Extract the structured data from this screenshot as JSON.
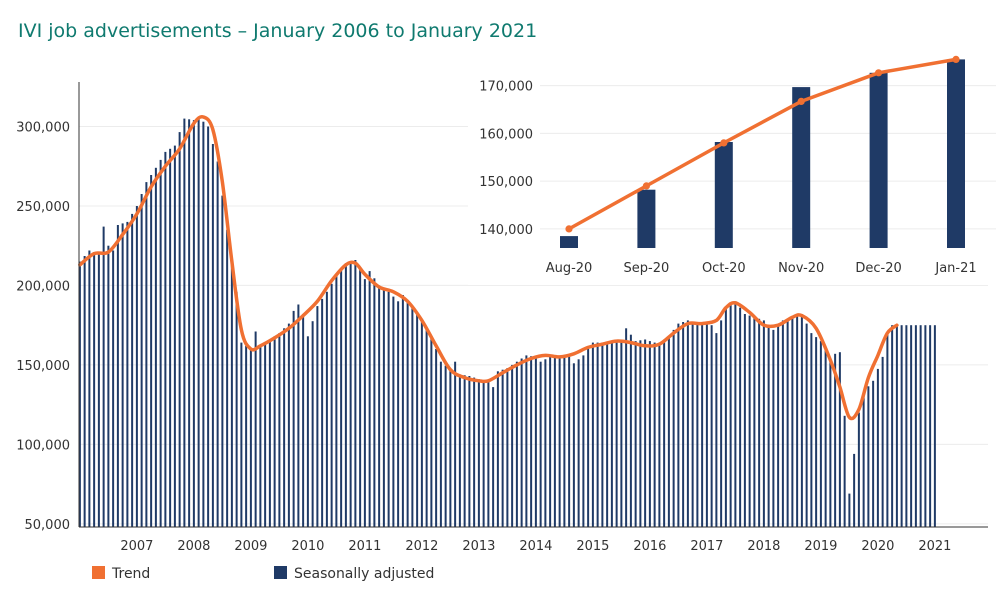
{
  "title": "IVI job advertisements – January 2006 to January 2021",
  "colors": {
    "trend": "#f07032",
    "bars": "#1f3a66",
    "title": "#0f7a6f"
  },
  "legend": {
    "trend": "Trend",
    "bars": "Seasonally adjusted"
  },
  "chart_data": [
    {
      "type": "bar",
      "title": "IVI job advertisements – January 2006 to January 2021",
      "xlabel": "",
      "ylabel": "",
      "ylim": [
        48000,
        328000
      ],
      "yticks": [
        50000,
        100000,
        150000,
        200000,
        250000,
        300000
      ],
      "ytick_labels": [
        "50,000",
        "100,000",
        "150,000",
        "200,000",
        "250,000",
        "300,000"
      ],
      "xticks": [
        "2007",
        "2008",
        "2009",
        "2010",
        "2011",
        "2012",
        "2013",
        "2014",
        "2015",
        "2016",
        "2017",
        "2018",
        "2019",
        "2020",
        "2021"
      ],
      "start": "2006-01",
      "series": [
        {
          "name": "Seasonally adjusted",
          "kind": "bar",
          "anchors": [
            [
              0,
              215000
            ],
            [
              2,
              222000
            ],
            [
              4,
              220000
            ],
            [
              5,
              237000
            ],
            [
              6,
              225000
            ],
            [
              7,
              222000
            ],
            [
              8,
              238000
            ],
            [
              10,
              240000
            ],
            [
              12,
              250000
            ],
            [
              14,
              265000
            ],
            [
              16,
              274000
            ],
            [
              18,
              284000
            ],
            [
              20,
              288000
            ],
            [
              22,
              305000
            ],
            [
              24,
              304000
            ],
            [
              25,
              306000
            ],
            [
              27,
              300000
            ],
            [
              29,
              278000
            ],
            [
              31,
              235000
            ],
            [
              33,
              196000
            ],
            [
              34,
              164000
            ],
            [
              35,
              162000
            ],
            [
              36,
              160000
            ],
            [
              37,
              171000
            ],
            [
              38,
              162000
            ],
            [
              40,
              166000
            ],
            [
              42,
              170000
            ],
            [
              44,
              176000
            ],
            [
              45,
              184000
            ],
            [
              46,
              188000
            ],
            [
              47,
              182000
            ],
            [
              48,
              168000
            ],
            [
              50,
              187000
            ],
            [
              52,
              196000
            ],
            [
              54,
              206000
            ],
            [
              56,
              214000
            ],
            [
              58,
              216000
            ],
            [
              60,
              204000
            ],
            [
              61,
              209000
            ],
            [
              63,
              200000
            ],
            [
              65,
              196000
            ],
            [
              67,
              190000
            ],
            [
              68,
              194000
            ],
            [
              70,
              187000
            ],
            [
              72,
              177000
            ],
            [
              74,
              168000
            ],
            [
              76,
              152000
            ],
            [
              78,
              147000
            ],
            [
              79,
              152000
            ],
            [
              80,
              144000
            ],
            [
              82,
              143000
            ],
            [
              84,
              141000
            ],
            [
              86,
              140000
            ],
            [
              87,
              136000
            ],
            [
              88,
              146000
            ],
            [
              90,
              148000
            ],
            [
              92,
              152000
            ],
            [
              94,
              156000
            ],
            [
              96,
              155000
            ],
            [
              97,
              152000
            ],
            [
              99,
              155000
            ],
            [
              101,
              155000
            ],
            [
              103,
              156000
            ],
            [
              104,
              151000
            ],
            [
              106,
              156000
            ],
            [
              108,
              164000
            ],
            [
              110,
              164000
            ],
            [
              112,
              164000
            ],
            [
              114,
              165000
            ],
            [
              115,
              173000
            ],
            [
              117,
              165000
            ],
            [
              119,
              166000
            ],
            [
              121,
              164000
            ],
            [
              122,
              164000
            ],
            [
              124,
              168000
            ],
            [
              126,
              176000
            ],
            [
              128,
              178000
            ],
            [
              130,
              176000
            ],
            [
              131,
              177000
            ],
            [
              133,
              175000
            ],
            [
              134,
              170000
            ],
            [
              136,
              186000
            ],
            [
              138,
              190000
            ],
            [
              140,
              182000
            ],
            [
              142,
              180000
            ],
            [
              144,
              178000
            ],
            [
              146,
              172000
            ],
            [
              148,
              178000
            ],
            [
              150,
              180000
            ],
            [
              152,
              182000
            ],
            [
              154,
              170000
            ],
            [
              156,
              165000
            ],
            [
              158,
              154000
            ],
            [
              159,
              157000
            ],
            [
              160,
              158000
            ],
            [
              161,
              118000
            ],
            [
              162,
              69000
            ],
            [
              163,
              94000
            ],
            [
              164,
              120000
            ],
            [
              165,
              133000
            ],
            [
              167,
              140000
            ],
            [
              169,
              155000
            ],
            [
              170,
              169000
            ],
            [
              171,
              175000
            ]
          ]
        },
        {
          "name": "Trend",
          "kind": "line",
          "anchors": [
            [
              0,
              213000
            ],
            [
              3,
              220000
            ],
            [
              6,
              221000
            ],
            [
              9,
              232000
            ],
            [
              12,
              245000
            ],
            [
              15,
              262000
            ],
            [
              18,
              275000
            ],
            [
              21,
              286000
            ],
            [
              24,
              302000
            ],
            [
              26,
              306000
            ],
            [
              28,
              298000
            ],
            [
              30,
              265000
            ],
            [
              32,
              215000
            ],
            [
              34,
              172000
            ],
            [
              36,
              160000
            ],
            [
              38,
              162000
            ],
            [
              41,
              167000
            ],
            [
              44,
              173000
            ],
            [
              47,
              181000
            ],
            [
              50,
              190000
            ],
            [
              53,
              203000
            ],
            [
              56,
              213000
            ],
            [
              58,
              214000
            ],
            [
              60,
              207000
            ],
            [
              63,
              199000
            ],
            [
              66,
              196000
            ],
            [
              69,
              190000
            ],
            [
              72,
              178000
            ],
            [
              75,
              162000
            ],
            [
              78,
              147000
            ],
            [
              81,
              142000
            ],
            [
              84,
              140000
            ],
            [
              86,
              140000
            ],
            [
              89,
              145000
            ],
            [
              92,
              150000
            ],
            [
              95,
              154000
            ],
            [
              98,
              156000
            ],
            [
              101,
              155000
            ],
            [
              104,
              157000
            ],
            [
              107,
              161000
            ],
            [
              110,
              163000
            ],
            [
              113,
              165000
            ],
            [
              116,
              164000
            ],
            [
              119,
              162000
            ],
            [
              122,
              163000
            ],
            [
              125,
              170000
            ],
            [
              128,
              176000
            ],
            [
              131,
              176000
            ],
            [
              134,
              178000
            ],
            [
              136,
              186000
            ],
            [
              138,
              189000
            ],
            [
              141,
              183000
            ],
            [
              144,
              175000
            ],
            [
              147,
              175000
            ],
            [
              150,
              180000
            ],
            [
              152,
              181000
            ],
            [
              155,
              173000
            ],
            [
              158,
              153000
            ],
            [
              160,
              136000
            ],
            [
              162,
              117000
            ],
            [
              164,
              122000
            ],
            [
              166,
              142000
            ],
            [
              168,
              156000
            ],
            [
              170,
              170000
            ],
            [
              172,
              175000
            ]
          ]
        }
      ]
    },
    {
      "type": "bar",
      "title": "",
      "xlabel": "",
      "ylabel": "",
      "ylim": [
        136000,
        176000
      ],
      "yticks": [
        140000,
        150000,
        160000,
        170000
      ],
      "ytick_labels": [
        "140,000",
        "150,000",
        "160,000",
        "170,000"
      ],
      "categories": [
        "Aug-20",
        "Sep-20",
        "Oct-20",
        "Nov-20",
        "Dec-20",
        "Jan-21"
      ],
      "series": [
        {
          "name": "Seasonally adjusted",
          "kind": "bar",
          "values": [
            138500,
            148200,
            158200,
            169700,
            172700,
            175500
          ]
        },
        {
          "name": "Trend",
          "kind": "line",
          "values": [
            140000,
            149000,
            158000,
            166700,
            172700,
            175500
          ]
        }
      ]
    }
  ]
}
